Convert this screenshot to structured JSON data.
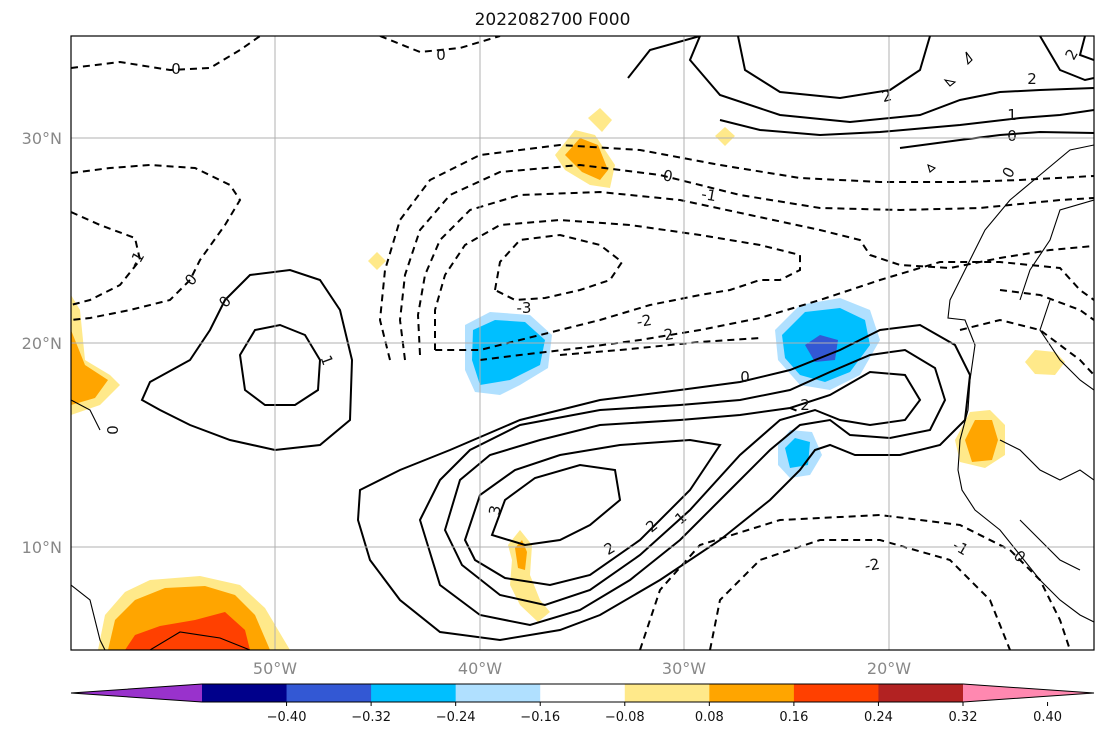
{
  "title": "2022082700 F000",
  "map": {
    "lat_labels": [
      "30°N",
      "20°N",
      "10°N"
    ],
    "lon_labels": [
      "50°W",
      "40°W",
      "30°W",
      "20°W"
    ],
    "grid_color": "#b0b0b0",
    "contour_labels": {
      "zero": "0",
      "one": "1",
      "two": "2",
      "three": "3",
      "neg_one": "-1",
      "neg_two": "-2",
      "neg_three": "-3"
    }
  },
  "colorbar": {
    "colors": [
      "#9932cc",
      "#00008b",
      "#3358d4",
      "#00bfff",
      "#b0e0ff",
      "#ffffff",
      "#ffe98a",
      "#ffa500",
      "#ff4000",
      "#b22222",
      "#ff88b0"
    ],
    "tick_labels": [
      "−0.40",
      "−0.32",
      "−0.24",
      "−0.16",
      "−0.08",
      "0.08",
      "0.16",
      "0.24",
      "0.32",
      "0.40"
    ]
  }
}
